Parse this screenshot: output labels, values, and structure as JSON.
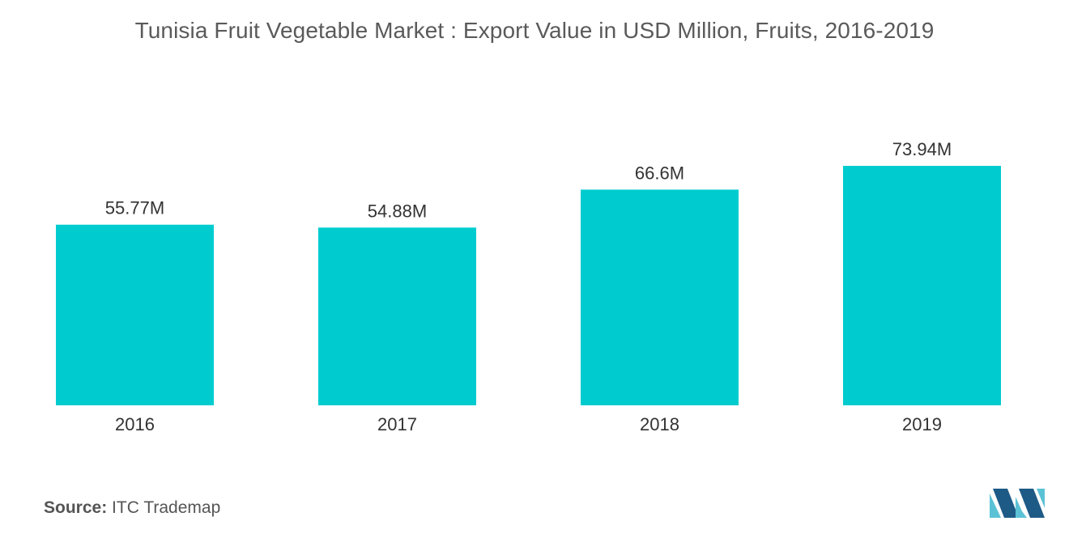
{
  "chart_data": {
    "type": "bar",
    "title": "Tunisia Fruit  Vegetable Market : Export Value in USD Million,  Fruits, 2016-2019",
    "categories": [
      "2016",
      "2017",
      "2018",
      "2019"
    ],
    "values": [
      55.77,
      54.88,
      66.6,
      73.94
    ],
    "value_labels": [
      "55.77M",
      "54.88M",
      "66.6M",
      "73.94M"
    ],
    "xlabel": "",
    "ylabel": "",
    "ylim": [
      0,
      73.94
    ],
    "grid": false,
    "legend": "none",
    "bar_color": "#00cccf"
  },
  "source": {
    "label": "Source:",
    "text": "ITC Trademap"
  },
  "logo": {
    "icon": "mordor-intelligence-logo",
    "color_light": "#5bc2d6",
    "color_dark": "#1e5a86"
  }
}
